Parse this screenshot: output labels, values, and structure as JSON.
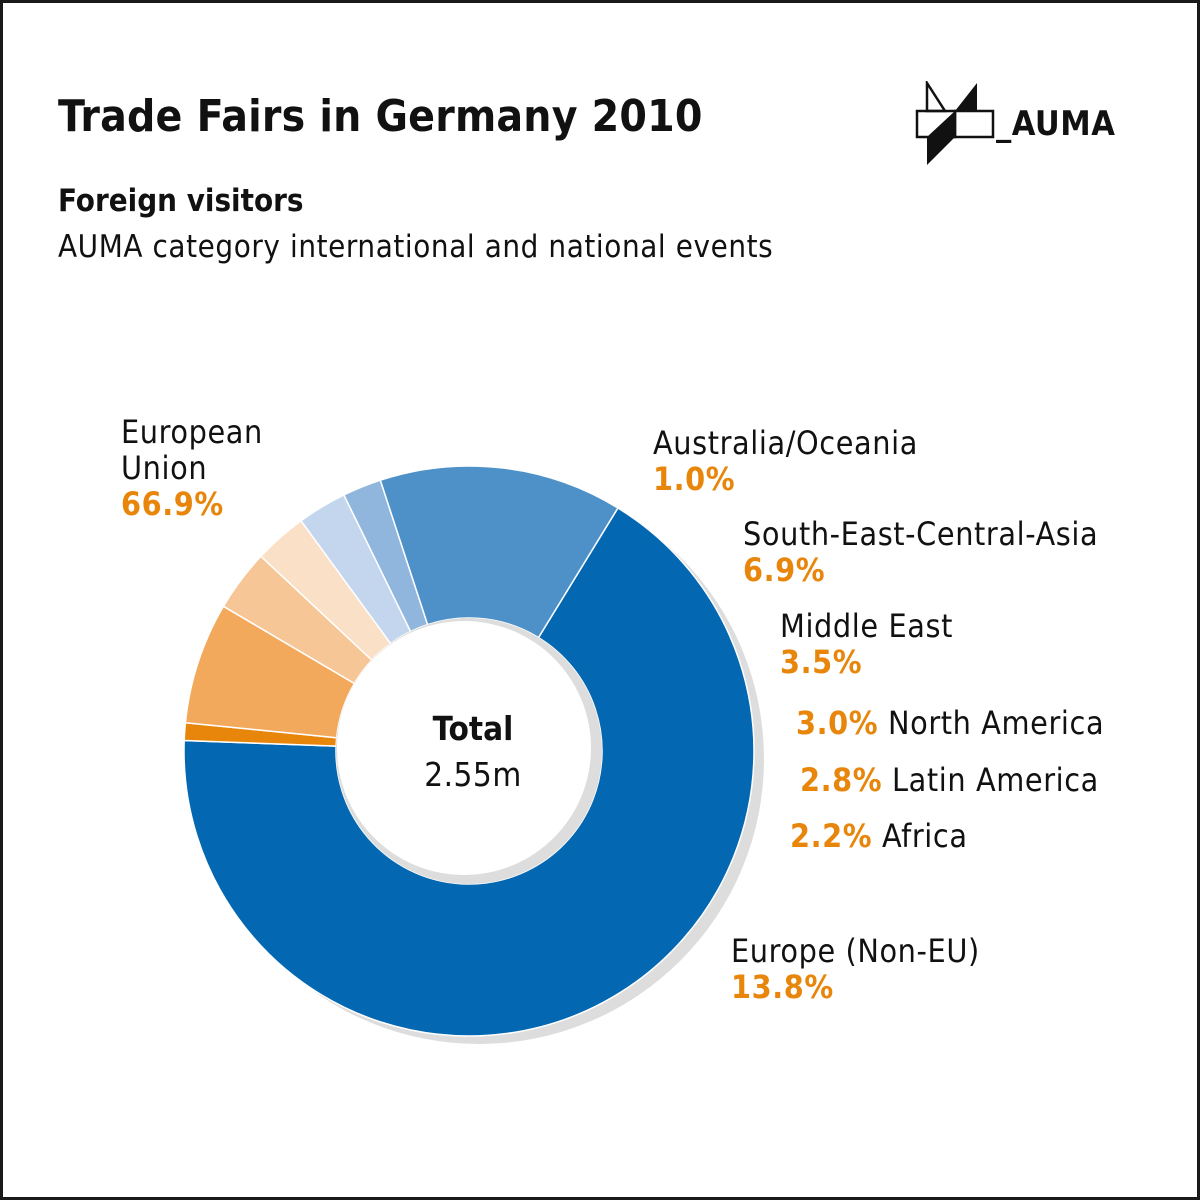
{
  "header": {
    "title": "Trade Fairs in Germany 2010",
    "subtitle": "Foreign visitors",
    "description": "AUMA category international and national events",
    "logo_text": "_AUMA"
  },
  "chart_data": {
    "type": "pie",
    "variant": "donut",
    "total_label": "Total",
    "total_value": "2.55m",
    "series": [
      {
        "name_lines": [
          "European",
          "Union"
        ],
        "value": 66.9,
        "value_label": "66.9%",
        "color": "#0367B1"
      },
      {
        "name_lines": [
          "Australia/Oceania"
        ],
        "value": 1.0,
        "value_label": "1.0%",
        "color": "#E8860C"
      },
      {
        "name_lines": [
          "South-East-Central-Asia"
        ],
        "value": 6.9,
        "value_label": "6.9%",
        "color": "#F3A95C"
      },
      {
        "name_lines": [
          "Middle East"
        ],
        "value": 3.5,
        "value_label": "3.5%",
        "color": "#F7C696"
      },
      {
        "name_lines": [
          "North America"
        ],
        "value": 3.0,
        "value_label": "3.0%",
        "color": "#FAE0C6"
      },
      {
        "name_lines": [
          "Latin America"
        ],
        "value": 2.8,
        "value_label": "2.8%",
        "color": "#C3D6EE"
      },
      {
        "name_lines": [
          "Africa"
        ],
        "value": 2.2,
        "value_label": "2.2%",
        "color": "#91B6DD"
      },
      {
        "name_lines": [
          "Europe (Non-EU)"
        ],
        "value": 13.8,
        "value_label": "13.8%",
        "color": "#4E91C9"
      }
    ],
    "colors": {
      "percent_label": "#E8860C",
      "shadow": "#DDDDDD"
    }
  }
}
